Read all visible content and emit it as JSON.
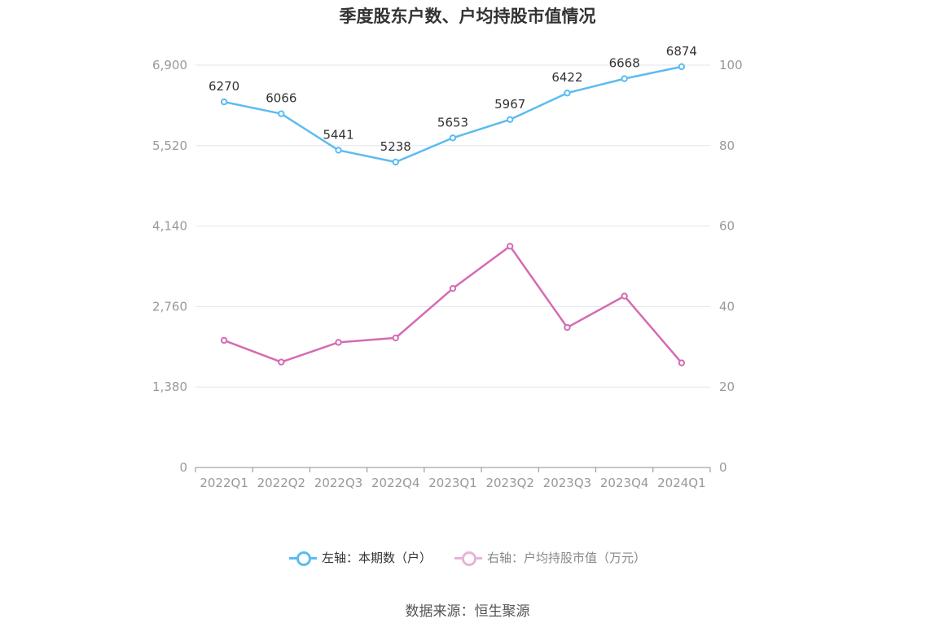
{
  "title": "季度股东户数、户均持股市值情况",
  "source": "数据来源：恒生聚源",
  "colors": {
    "left_series": "#5bbcf0",
    "right_series": "#d56bb3",
    "grid": "#e3e6ef",
    "axis": "#8c8c8c"
  },
  "chart_data": {
    "type": "line",
    "categories": [
      "2022Q1",
      "2022Q2",
      "2022Q3",
      "2022Q4",
      "2023Q1",
      "2023Q2",
      "2023Q3",
      "2023Q4",
      "2024Q1"
    ],
    "left_axis": {
      "ylim": [
        0,
        6900
      ],
      "ticks": [
        "0",
        "1,380",
        "2,760",
        "4,140",
        "5,520",
        "6,900"
      ]
    },
    "right_axis": {
      "ylim": [
        0,
        100
      ],
      "ticks": [
        "0",
        "20",
        "40",
        "60",
        "80",
        "100"
      ]
    },
    "series": [
      {
        "name": "左轴：本期数（户）",
        "axis": "left",
        "values": [
          6270,
          6066,
          5441,
          5238,
          5653,
          5967,
          6422,
          6668,
          6874
        ],
        "labels": [
          "6270",
          "6066",
          "5441",
          "5238",
          "5653",
          "5967",
          "6422",
          "6668",
          "6874"
        ]
      },
      {
        "name": "右轴：户均持股市值（万元）",
        "axis": "right",
        "values": [
          31.6,
          26.2,
          31.1,
          32.2,
          44.5,
          55.0,
          34.8,
          42.6,
          26.0
        ]
      }
    ],
    "grid": true,
    "legend_position": "bottom"
  }
}
